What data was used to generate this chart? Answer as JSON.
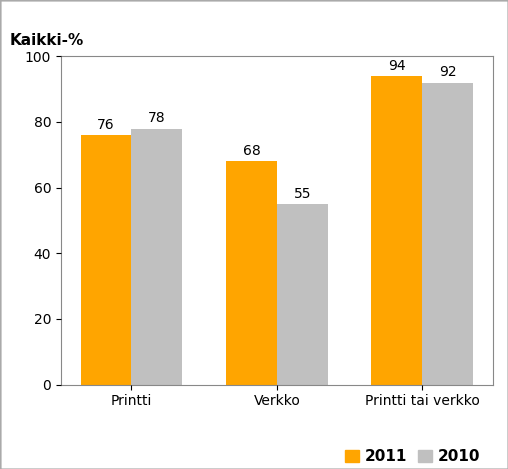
{
  "categories": [
    "Printti",
    "Verkko",
    "Printti tai verkko"
  ],
  "values_2011": [
    76,
    68,
    94
  ],
  "values_2010": [
    78,
    55,
    92
  ],
  "color_2011": "#FFA500",
  "color_2010": "#C0C0C0",
  "title": "Kaikki-%",
  "ylim": [
    0,
    100
  ],
  "yticks": [
    0,
    20,
    40,
    60,
    80,
    100
  ],
  "bar_width": 0.35,
  "legend_labels": [
    "2011",
    "2010"
  ],
  "label_fontsize": 10,
  "title_fontsize": 11,
  "tick_fontsize": 10,
  "background_color": "#ffffff",
  "border_color": "#aaaaaa"
}
